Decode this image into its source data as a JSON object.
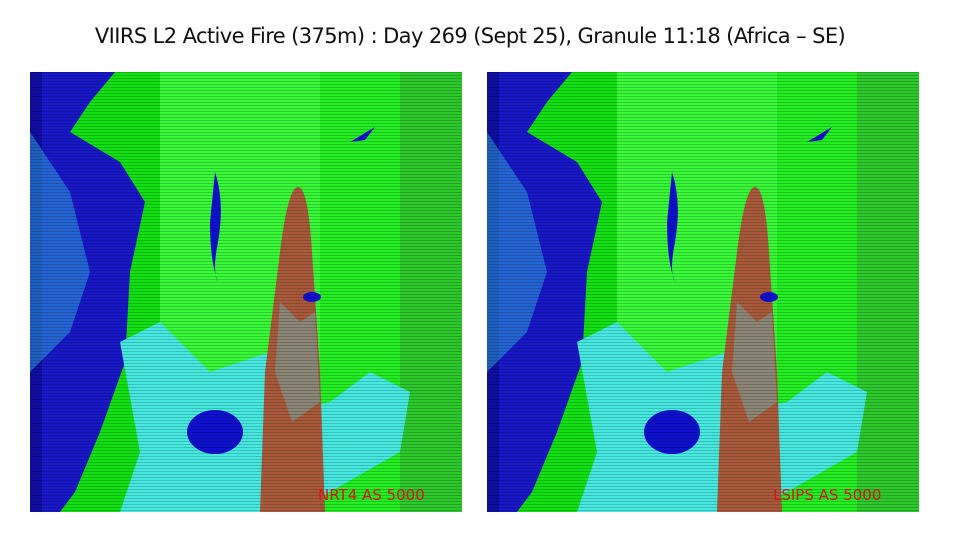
{
  "title": "VIIRS L2 Active Fire (375m) : Day 269 (Sept 25), Granule 11:18 (Africa – SE)",
  "panels": [
    {
      "label": "NRT4 AS 5000"
    },
    {
      "label": "LSIPS AS 5000"
    }
  ]
}
